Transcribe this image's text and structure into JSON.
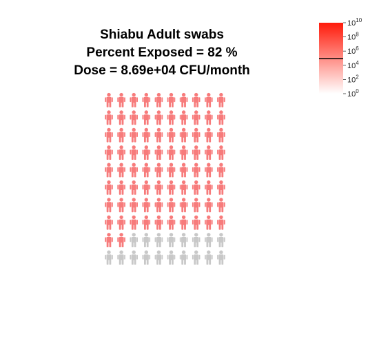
{
  "chart_data": {
    "type": "pictogram",
    "title_lines": [
      "Shiabu Adult swabs",
      "Percent Exposed = 82 %",
      "Dose = 8.69e+04 CFU/month"
    ],
    "percent_exposed": 82,
    "dose": 86900,
    "icons_total": 100,
    "grid_columns": 10,
    "grid_rows": 10,
    "exposed_color": "#f77b7b",
    "unexposed_color": "#c8c8c8",
    "legend": {
      "scale": "log10",
      "min": 1,
      "max": 10000000000,
      "ticks": [
        {
          "base": "10",
          "exp": "10"
        },
        {
          "base": "10",
          "exp": "8"
        },
        {
          "base": "10",
          "exp": "6"
        },
        {
          "base": "10",
          "exp": "4"
        },
        {
          "base": "10",
          "exp": "2"
        },
        {
          "base": "10",
          "exp": "0"
        }
      ],
      "marker_value": 86900,
      "color_high": "#ff1a0a",
      "color_low": "#ffffff"
    }
  }
}
